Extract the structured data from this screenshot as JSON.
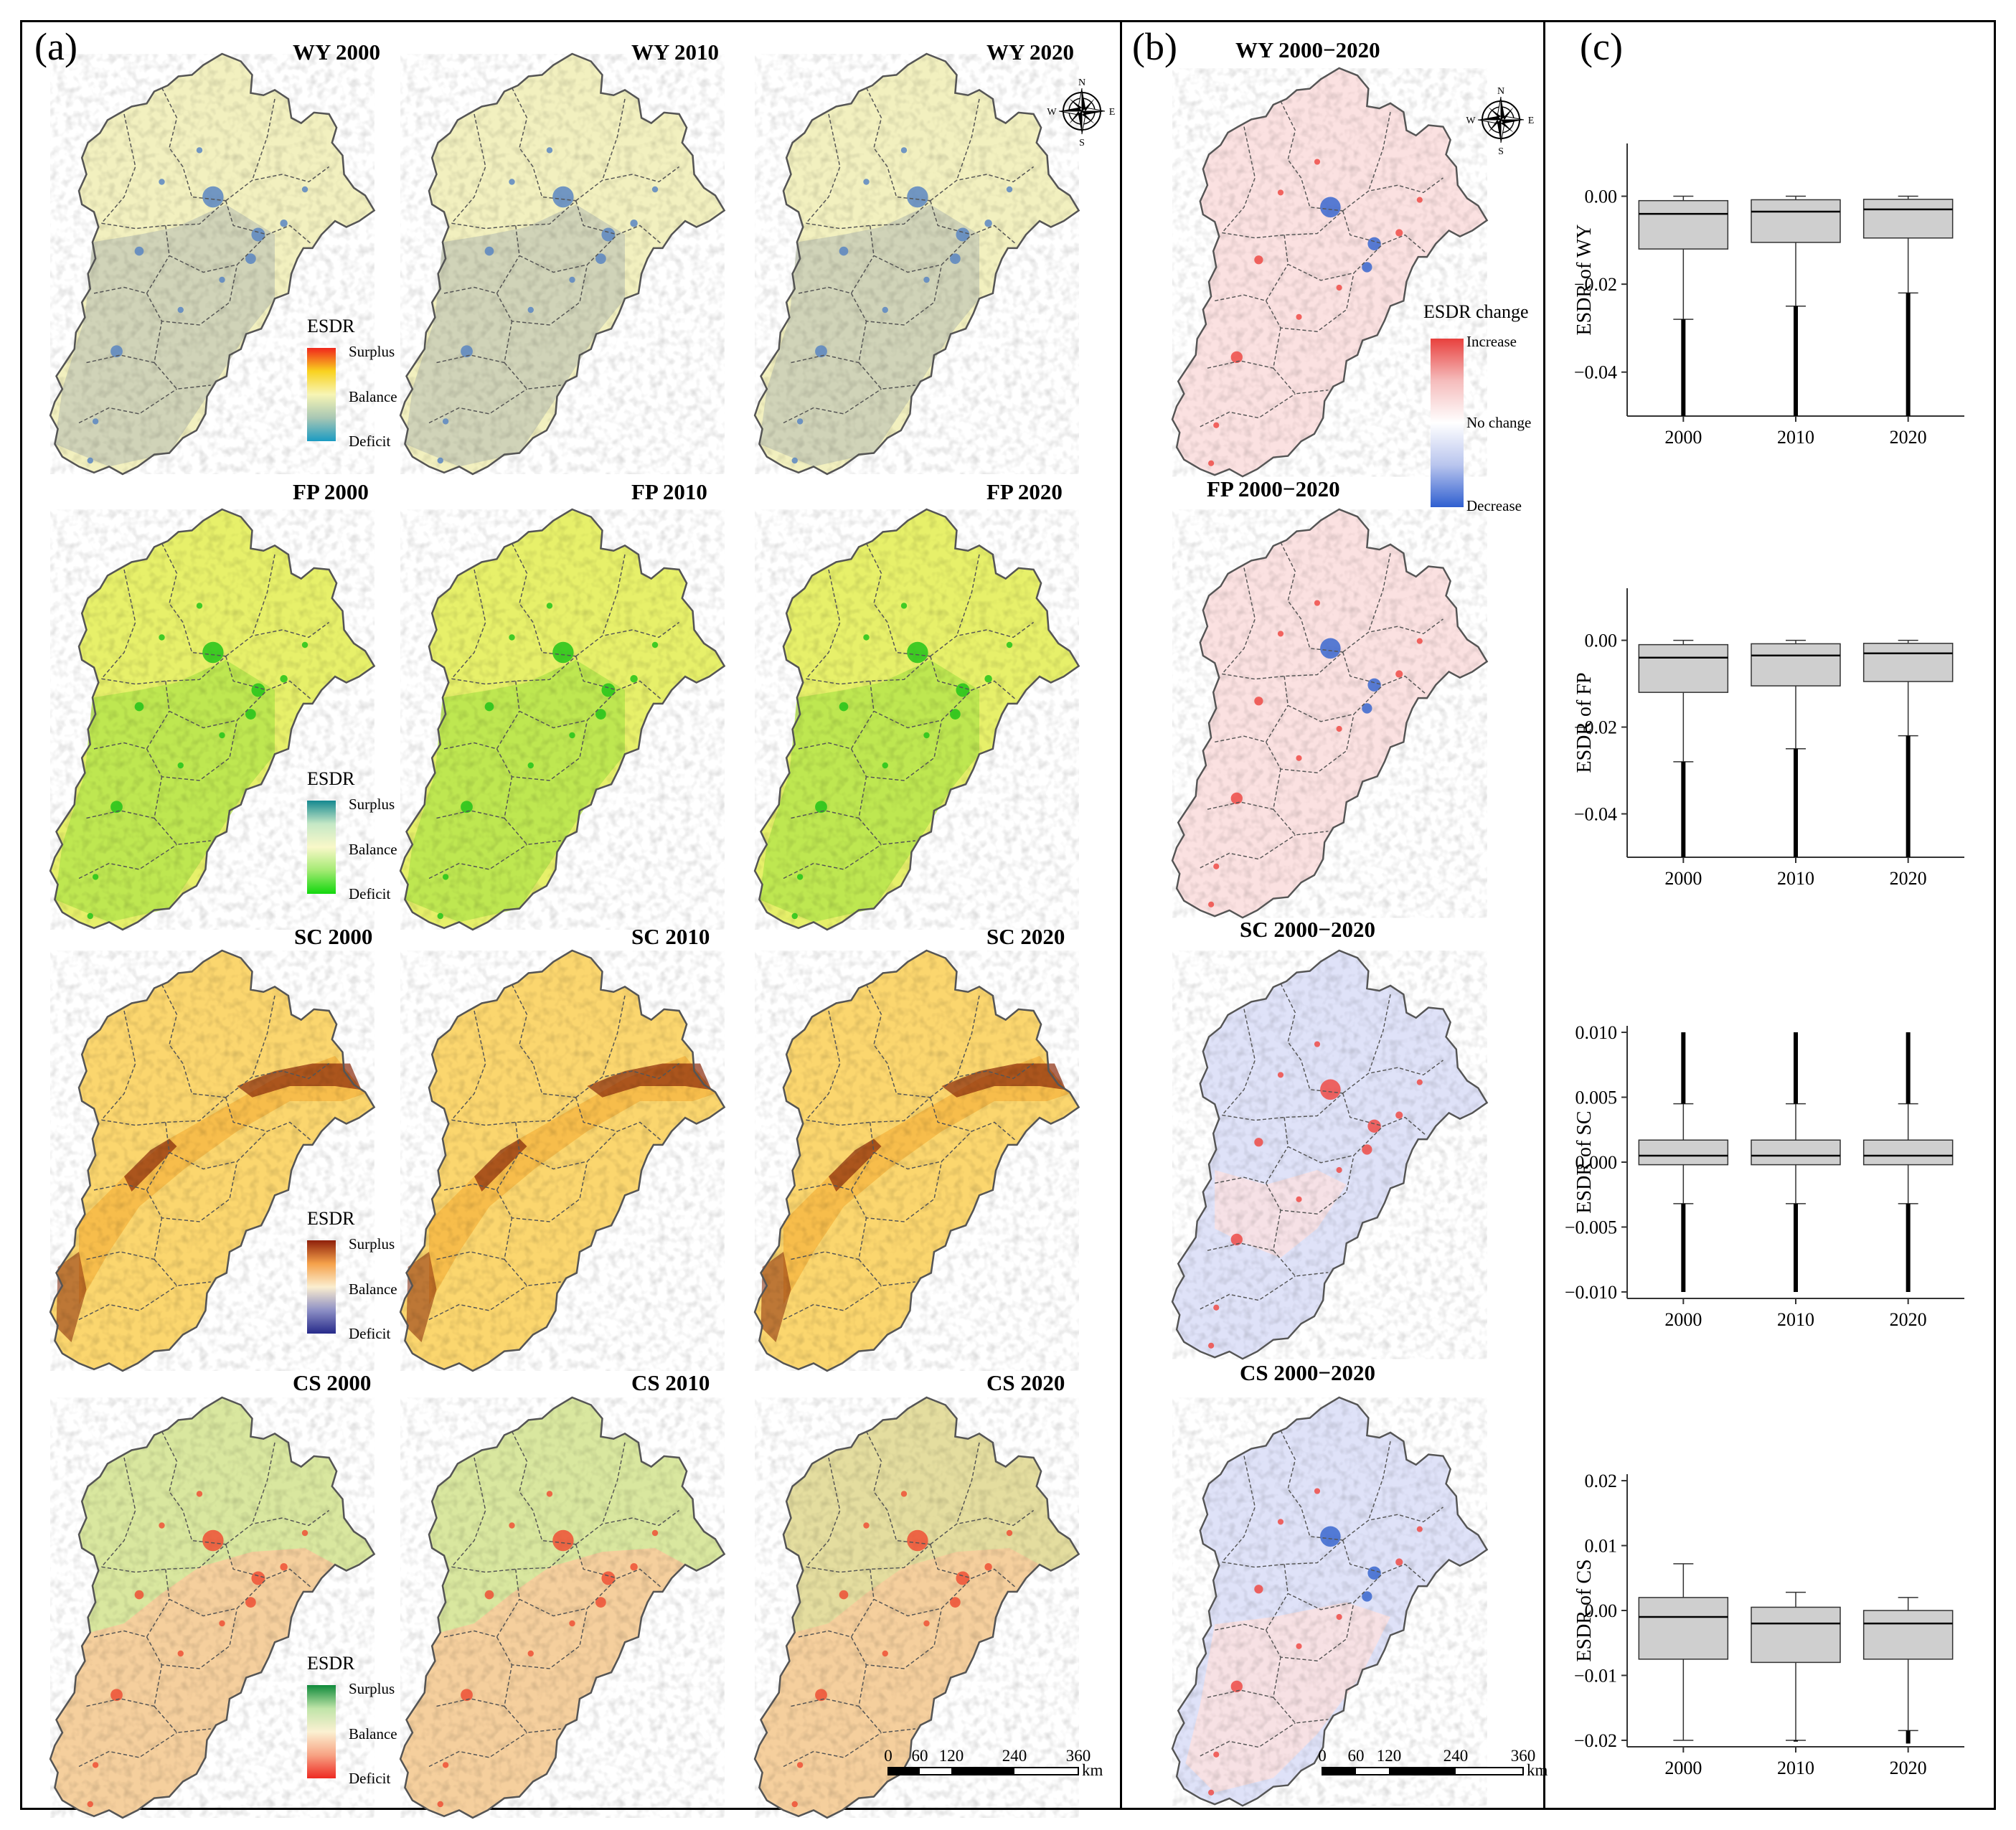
{
  "panels": {
    "a": "(a)",
    "b": "(b)",
    "c": "(c)"
  },
  "map_titles": {
    "WY": [
      "WY 2000",
      "WY 2010",
      "WY 2020"
    ],
    "FP": [
      "FP 2000",
      "FP 2010",
      "FP 2020"
    ],
    "SC": [
      "SC 2000",
      "SC 2010",
      "SC 2020"
    ],
    "CS": [
      "CS 2000",
      "CS 2010",
      "CS 2020"
    ]
  },
  "change_titles": [
    "WY   2000−2020",
    "FP   2000−2020",
    "SC   2000−2020",
    "CS   2000−2020"
  ],
  "legends": {
    "esdr_title": "ESDR",
    "esdr_ticks": [
      "Surplus",
      "Balance",
      "Deficit"
    ],
    "change_title": "ESDR change",
    "change_ticks": [
      "Increase",
      "No change",
      "Decrease"
    ]
  },
  "scalebar": {
    "ticks": [
      "0",
      "60",
      "120",
      "240",
      "360"
    ],
    "unit": "km"
  },
  "compass": {
    "n": "N",
    "s": "S",
    "e": "E",
    "w": "W"
  },
  "colors": {
    "WY": {
      "fill": "#f2f0bf",
      "mix": "#c4c9b6",
      "hot": "#5b86c2",
      "ramp": [
        "#f0261c",
        "#f9d21f",
        "#f7f5b4",
        "#a8c7b4",
        "#1b9bc2"
      ]
    },
    "FP": {
      "fill": "#e7f06a",
      "mix": "#b4e54b",
      "hot": "#22c419",
      "ramp": [
        "#14888f",
        "#c5e8c6",
        "#f9f8c9",
        "#a3ea72",
        "#12d70d"
      ]
    },
    "SC": {
      "fill": "#fbd66e",
      "mix": "#f6b845",
      "hot": "#8a2a0a",
      "ramp": [
        "#8e1f0a",
        "#f5a14a",
        "#fbeecf",
        "#8d8fc5",
        "#262a8a"
      ]
    },
    "CS": {
      "fill": "#f5cf9d",
      "mix": "#d6e9a0",
      "hot": "#ef5035",
      "ramp": [
        "#0e8a3a",
        "#bfe4a8",
        "#fbf1d2",
        "#f7a384",
        "#ee2a22"
      ]
    },
    "change": {
      "fill": "#fbe1e1",
      "inc": "#ef4b46",
      "dec": "#3a67cf",
      "blue": "#dfe2f8",
      "ramp": [
        "#e8403d",
        "#f5bcbc",
        "#ffffff",
        "#b9c5ee",
        "#2f5fd0"
      ]
    }
  },
  "chart_data": [
    {
      "type": "box",
      "ylabel": "ESDR of WY",
      "categories": [
        "2000",
        "2010",
        "2020"
      ],
      "ylim": [
        -0.05,
        0.012
      ],
      "yticks": [
        "0.00",
        "−0.02",
        "−0.04"
      ],
      "ytick_values": [
        0,
        -0.02,
        -0.04
      ],
      "boxes": [
        {
          "whisker_low": -0.028,
          "q1": -0.012,
          "median": -0.004,
          "q3": -0.001,
          "whisker_high": 0.0,
          "outlier_min": -0.05
        },
        {
          "whisker_low": -0.025,
          "q1": -0.0105,
          "median": -0.0035,
          "q3": -0.0008,
          "whisker_high": 0.0,
          "outlier_min": -0.05
        },
        {
          "whisker_low": -0.022,
          "q1": -0.0095,
          "median": -0.003,
          "q3": -0.0007,
          "whisker_high": 0.0,
          "outlier_min": -0.05
        }
      ]
    },
    {
      "type": "box",
      "ylabel": "ESDR of  FP",
      "categories": [
        "2000",
        "2010",
        "2020"
      ],
      "ylim": [
        -0.05,
        0.012
      ],
      "yticks": [
        "0.00",
        "−0.02",
        "−0.04"
      ],
      "ytick_values": [
        0,
        -0.02,
        -0.04
      ],
      "boxes": [
        {
          "whisker_low": -0.028,
          "q1": -0.012,
          "median": -0.004,
          "q3": -0.001,
          "whisker_high": 0.0,
          "outlier_min": -0.05
        },
        {
          "whisker_low": -0.025,
          "q1": -0.0105,
          "median": -0.0035,
          "q3": -0.0008,
          "whisker_high": 0.0,
          "outlier_min": -0.05
        },
        {
          "whisker_low": -0.022,
          "q1": -0.0095,
          "median": -0.003,
          "q3": -0.0007,
          "whisker_high": 0.0,
          "outlier_min": -0.05
        }
      ]
    },
    {
      "type": "box",
      "ylabel": "ESDR of SC",
      "categories": [
        "2000",
        "2010",
        "2020"
      ],
      "ylim": [
        -0.0105,
        0.0105
      ],
      "yticks": [
        "0.010",
        "0.005",
        "0.000",
        "−0.005",
        "−0.010"
      ],
      "ytick_values": [
        0.01,
        0.005,
        0,
        -0.005,
        -0.01
      ],
      "boxes": [
        {
          "whisker_low": -0.0032,
          "q1": -0.0002,
          "median": 0.0005,
          "q3": 0.0017,
          "whisker_high": 0.0045,
          "outlier_min": -0.01,
          "outlier_max": 0.01
        },
        {
          "whisker_low": -0.0032,
          "q1": -0.0002,
          "median": 0.0005,
          "q3": 0.0017,
          "whisker_high": 0.0045,
          "outlier_min": -0.01,
          "outlier_max": 0.01
        },
        {
          "whisker_low": -0.0032,
          "q1": -0.0002,
          "median": 0.0005,
          "q3": 0.0017,
          "whisker_high": 0.0045,
          "outlier_min": -0.01,
          "outlier_max": 0.01
        }
      ]
    },
    {
      "type": "box",
      "ylabel": "ESDR of CS",
      "categories": [
        "2000",
        "2010",
        "2020"
      ],
      "ylim": [
        -0.021,
        0.021
      ],
      "yticks": [
        "0.02",
        "0.01",
        "0.00",
        "−0.01",
        "−0.02"
      ],
      "ytick_values": [
        0.02,
        0.01,
        0,
        -0.01,
        -0.02
      ],
      "boxes": [
        {
          "whisker_low": -0.02,
          "q1": -0.0075,
          "median": -0.001,
          "q3": 0.002,
          "whisker_high": 0.0072
        },
        {
          "whisker_low": -0.02,
          "q1": -0.008,
          "median": -0.002,
          "q3": 0.0005,
          "whisker_high": 0.0028,
          "outlier_min": -0.0202
        },
        {
          "whisker_low": -0.0185,
          "q1": -0.0075,
          "median": -0.002,
          "q3": 0.0,
          "whisker_high": 0.002,
          "outlier_min": -0.0205
        }
      ]
    }
  ]
}
